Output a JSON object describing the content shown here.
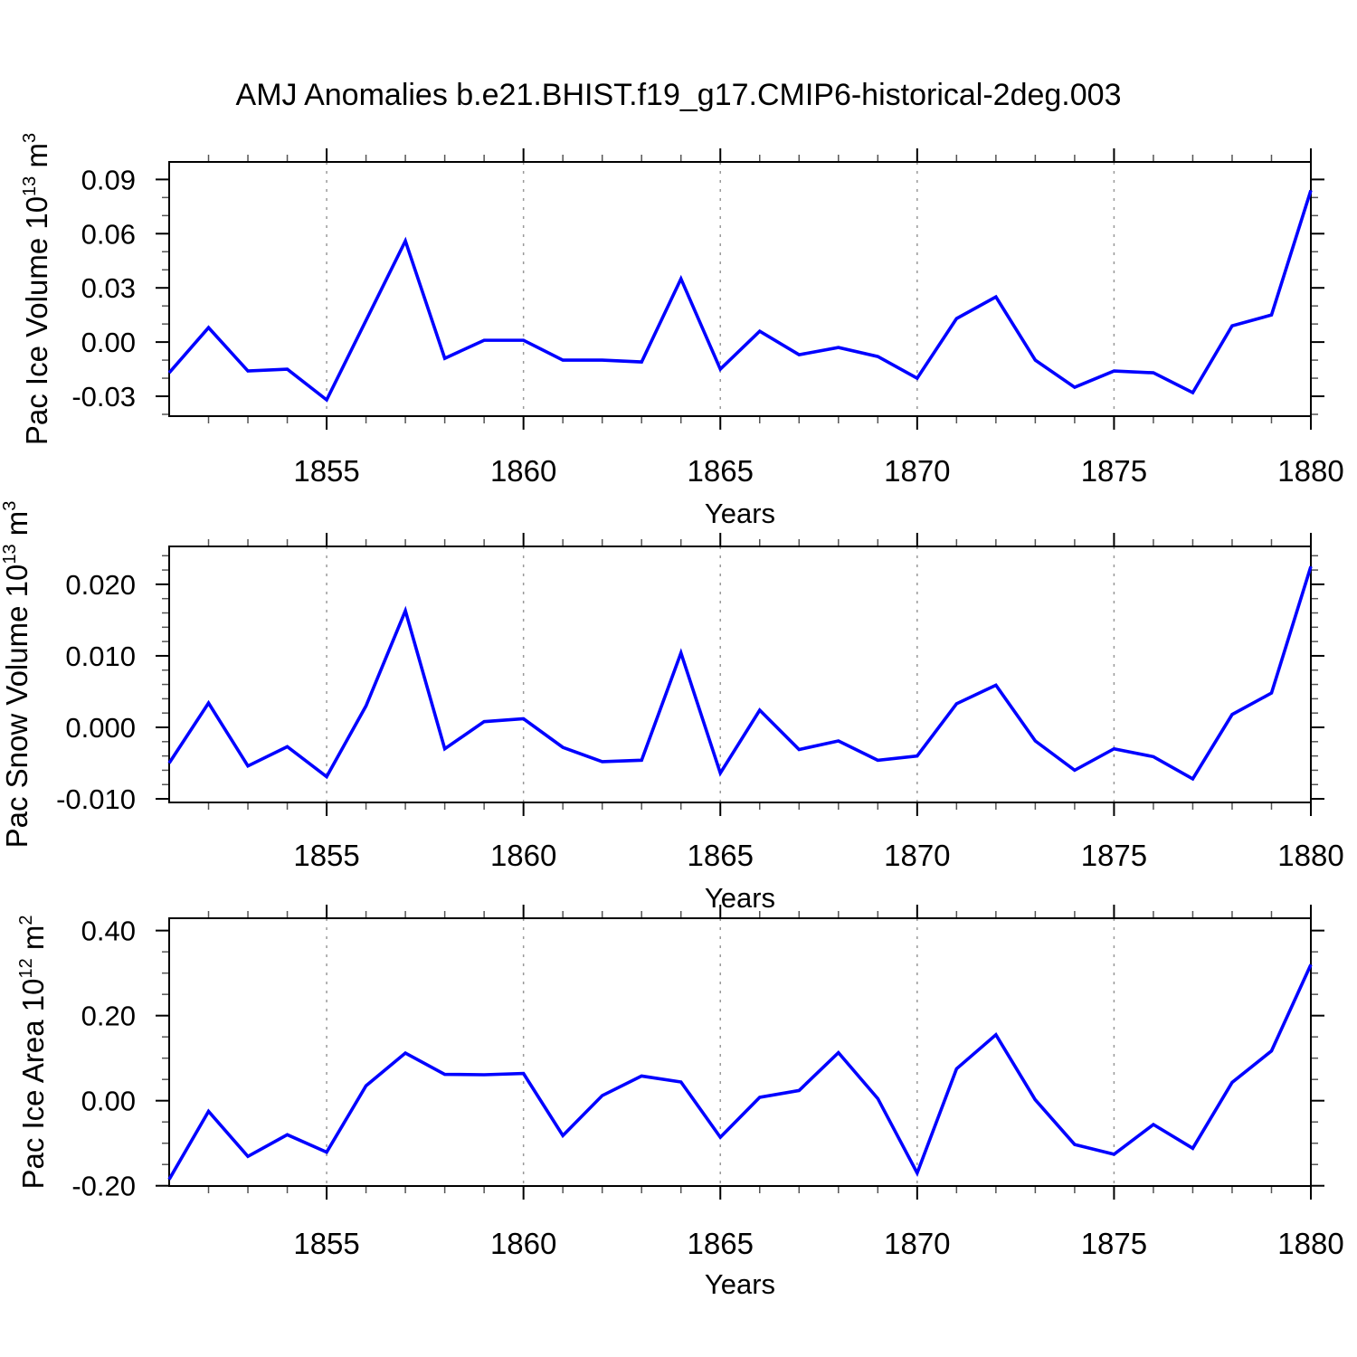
{
  "title": "AMJ Anomalies b.e21.BHIST.f19_g17.CMIP6-historical-2deg.003",
  "colors": {
    "line": "#0000ff",
    "grid": "#999999",
    "axis": "#000000",
    "minor_tick": "#555555",
    "background": "#ffffff"
  },
  "chart_data": [
    {
      "type": "line",
      "title": "AMJ Anomalies b.e21.BHIST.f19_g17.CMIP6-historical-2deg.003",
      "xlabel": "Years",
      "ylabel": "Pac Ice Volume 10^13 m^3",
      "ylabel_parts": [
        {
          "t": "Pac Ice Volume 10"
        },
        {
          "t": "13",
          "sup": true
        },
        {
          "t": " m"
        },
        {
          "t": "3",
          "sup": true
        }
      ],
      "xlim": [
        1851,
        1880
      ],
      "ylim": [
        -0.041,
        0.0997
      ],
      "xticks_major": [
        1855,
        1860,
        1865,
        1870,
        1875,
        1880
      ],
      "xminor_step": 1,
      "yminor_step": 0.01,
      "grid": "vertical-dashed-at-major-xticks",
      "legend": "none",
      "line_color": "#0000ff",
      "yticks": [
        {
          "v": 0.09,
          "label": "0.09"
        },
        {
          "v": 0.06,
          "label": "0.06"
        },
        {
          "v": 0.03,
          "label": "0.03"
        },
        {
          "v": 0.0,
          "label": "0.00"
        },
        {
          "v": -0.03,
          "label": "-0.03"
        }
      ],
      "x": [
        1851,
        1852,
        1853,
        1854,
        1855,
        1856,
        1857,
        1858,
        1859,
        1860,
        1861,
        1862,
        1863,
        1864,
        1865,
        1866,
        1867,
        1868,
        1869,
        1870,
        1871,
        1872,
        1873,
        1874,
        1875,
        1876,
        1877,
        1878,
        1879,
        1880
      ],
      "values": [
        -0.017,
        0.008,
        -0.016,
        -0.015,
        -0.032,
        0.012,
        0.056,
        -0.009,
        0.001,
        0.001,
        -0.01,
        -0.01,
        -0.011,
        0.035,
        -0.015,
        0.006,
        -0.007,
        -0.003,
        -0.008,
        -0.02,
        0.013,
        0.025,
        -0.01,
        -0.025,
        -0.016,
        -0.017,
        -0.028,
        0.009,
        0.015,
        0.084
      ]
    },
    {
      "type": "line",
      "title": "",
      "xlabel": "Years",
      "ylabel": "Pac Snow Volume 10^13 m^3",
      "ylabel_parts": [
        {
          "t": "Pac Snow Volume 10"
        },
        {
          "t": "13",
          "sup": true
        },
        {
          "t": " m"
        },
        {
          "t": "3",
          "sup": true
        }
      ],
      "xlim": [
        1851,
        1880
      ],
      "ylim": [
        -0.0105,
        0.0253
      ],
      "xticks_major": [
        1855,
        1860,
        1865,
        1870,
        1875,
        1880
      ],
      "xminor_step": 1,
      "yminor_step": 0.002,
      "grid": "vertical-dashed-at-major-xticks",
      "legend": "none",
      "line_color": "#0000ff",
      "yticks": [
        {
          "v": 0.02,
          "label": "0.020"
        },
        {
          "v": 0.01,
          "label": "0.010"
        },
        {
          "v": 0.0,
          "label": "0.000"
        },
        {
          "v": -0.01,
          "label": "-0.010"
        }
      ],
      "x": [
        1851,
        1852,
        1853,
        1854,
        1855,
        1856,
        1857,
        1858,
        1859,
        1860,
        1861,
        1862,
        1863,
        1864,
        1865,
        1866,
        1867,
        1868,
        1869,
        1870,
        1871,
        1872,
        1873,
        1874,
        1875,
        1876,
        1877,
        1878,
        1879,
        1880
      ],
      "values": [
        -0.005,
        0.0034,
        -0.0054,
        -0.0027,
        -0.0069,
        0.003,
        0.0163,
        -0.003,
        0.0008,
        0.0012,
        -0.0028,
        -0.0048,
        -0.0046,
        0.0104,
        -0.0064,
        0.0024,
        -0.0031,
        -0.0019,
        -0.0046,
        -0.004,
        0.0033,
        0.0059,
        -0.0019,
        -0.006,
        -0.003,
        -0.0041,
        -0.0072,
        0.0018,
        0.0048,
        0.0225
      ]
    },
    {
      "type": "line",
      "title": "",
      "xlabel": "Years",
      "ylabel": "Pac Ice Area 10^12 m^2",
      "ylabel_parts": [
        {
          "t": "Pac Ice Area 10"
        },
        {
          "t": "12",
          "sup": true
        },
        {
          "t": " m"
        },
        {
          "t": "2",
          "sup": true
        }
      ],
      "xlim": [
        1851,
        1880
      ],
      "ylim": [
        -0.2006,
        0.429
      ],
      "xticks_major": [
        1855,
        1860,
        1865,
        1870,
        1875,
        1880
      ],
      "xminor_step": 1,
      "yminor_step": 0.05,
      "grid": "vertical-dashed-at-major-xticks",
      "legend": "none",
      "line_color": "#0000ff",
      "yticks": [
        {
          "v": 0.4,
          "label": "0.40"
        },
        {
          "v": 0.2,
          "label": "0.20"
        },
        {
          "v": 0.0,
          "label": "0.00"
        },
        {
          "v": -0.2,
          "label": "-0.20"
        }
      ],
      "x": [
        1851,
        1852,
        1853,
        1854,
        1855,
        1856,
        1857,
        1858,
        1859,
        1860,
        1861,
        1862,
        1863,
        1864,
        1865,
        1866,
        1867,
        1868,
        1869,
        1870,
        1871,
        1872,
        1873,
        1874,
        1875,
        1876,
        1877,
        1878,
        1879,
        1880
      ],
      "values": [
        -0.185,
        -0.025,
        -0.131,
        -0.08,
        -0.121,
        0.035,
        0.112,
        0.062,
        0.061,
        0.064,
        -0.082,
        0.012,
        0.058,
        0.044,
        -0.086,
        0.008,
        0.024,
        0.113,
        0.005,
        -0.17,
        0.075,
        0.155,
        0.002,
        -0.103,
        -0.126,
        -0.056,
        -0.112,
        0.043,
        0.117,
        0.32
      ]
    }
  ]
}
